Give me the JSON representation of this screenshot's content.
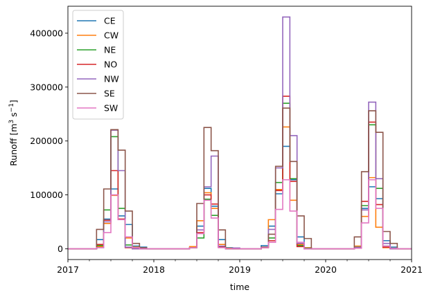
{
  "chart_data": {
    "type": "line",
    "step": "post",
    "xlabel": "time",
    "ylabel_main": "Runoff [m",
    "ylabel_sup1": "3",
    "ylabel_mid": " s",
    "ylabel_sup2": "−1",
    "ylabel_end": "]",
    "xlim": [
      0,
      48
    ],
    "ylim": [
      -20000,
      450000
    ],
    "x_ticks": [
      {
        "value": 0,
        "label": "2017"
      },
      {
        "value": 12,
        "label": "2018"
      },
      {
        "value": 24,
        "label": "2019"
      },
      {
        "value": 36,
        "label": "2020"
      },
      {
        "value": 48,
        "label": "2021"
      }
    ],
    "y_ticks": [
      {
        "value": 0,
        "label": "0"
      },
      {
        "value": 100000,
        "label": "100000"
      },
      {
        "value": 200000,
        "label": "200000"
      },
      {
        "value": 300000,
        "label": "300000"
      },
      {
        "value": 400000,
        "label": "400000"
      }
    ],
    "legend_position": "top-left",
    "series": [
      {
        "name": "CE",
        "color": "#1f77b4",
        "values": [
          0,
          0,
          0,
          0,
          17000,
          55000,
          111000,
          61000,
          45000,
          5000,
          3000,
          0,
          0,
          0,
          0,
          0,
          0,
          3000,
          42000,
          112000,
          79000,
          17000,
          2000,
          0,
          0,
          0,
          0,
          6000,
          42000,
          102000,
          190000,
          128000,
          22000,
          2000,
          0,
          0,
          0,
          0,
          0,
          0,
          3000,
          75000,
          115000,
          93000,
          15000,
          3000,
          0,
          0
        ]
      },
      {
        "name": "CW",
        "color": "#ff7f0e",
        "values": [
          0,
          0,
          0,
          0,
          4000,
          47000,
          99000,
          55000,
          20000,
          3000,
          1000,
          0,
          0,
          0,
          0,
          0,
          0,
          4000,
          52000,
          104000,
          75000,
          8000,
          1000,
          0,
          0,
          0,
          0,
          2000,
          54000,
          110000,
          226000,
          90000,
          8000,
          2000,
          0,
          0,
          0,
          0,
          0,
          0,
          5000,
          60000,
          132000,
          40000,
          2000,
          1000,
          0,
          0
        ]
      },
      {
        "name": "NE",
        "color": "#2ca02c",
        "values": [
          0,
          0,
          0,
          0,
          6000,
          72000,
          208000,
          75000,
          7000,
          1000,
          0,
          0,
          0,
          0,
          0,
          0,
          0,
          2000,
          20000,
          92000,
          62000,
          4000,
          0,
          0,
          0,
          0,
          0,
          3000,
          20000,
          123000,
          270000,
          130000,
          6000,
          1000,
          0,
          0,
          0,
          0,
          0,
          0,
          2000,
          80000,
          230000,
          112000,
          5000,
          1000,
          0,
          0
        ]
      },
      {
        "name": "NO",
        "color": "#d62728",
        "values": [
          0,
          0,
          0,
          0,
          8000,
          53000,
          145000,
          55000,
          2000,
          0,
          0,
          0,
          0,
          0,
          0,
          0,
          0,
          2000,
          30000,
          100000,
          83000,
          3000,
          0,
          0,
          0,
          0,
          0,
          2000,
          15000,
          108000,
          283000,
          125000,
          4000,
          0,
          0,
          0,
          0,
          0,
          0,
          0,
          2000,
          88000,
          235000,
          82000,
          3000,
          0,
          0,
          0
        ]
      },
      {
        "name": "NW",
        "color": "#9467bd",
        "values": [
          0,
          0,
          0,
          0,
          2000,
          50000,
          220000,
          145000,
          3000,
          0,
          0,
          0,
          0,
          0,
          0,
          0,
          0,
          2000,
          35000,
          115000,
          172000,
          5000,
          0,
          1500,
          0,
          0,
          0,
          3000,
          36000,
          150000,
          430000,
          210000,
          10000,
          0,
          0,
          0,
          0,
          0,
          0,
          0,
          2000,
          72000,
          272000,
          130000,
          10000,
          0,
          0,
          0
        ]
      },
      {
        "name": "SE",
        "color": "#8c564b",
        "values": [
          0,
          0,
          0,
          0,
          36000,
          111000,
          221000,
          183000,
          70000,
          10000,
          2000,
          0,
          0,
          0,
          0,
          0,
          0,
          2000,
          84000,
          225000,
          182000,
          35000,
          0,
          0,
          0,
          0,
          0,
          3000,
          27000,
          153000,
          261000,
          162000,
          61000,
          19000,
          0,
          0,
          0,
          0,
          0,
          0,
          22000,
          143000,
          256000,
          216000,
          32000,
          10000,
          0,
          0
        ]
      },
      {
        "name": "SW",
        "color": "#e377c2",
        "values": [
          0,
          0,
          0,
          0,
          2000,
          30000,
          100000,
          54000,
          22000,
          2000,
          0,
          0,
          0,
          0,
          0,
          0,
          0,
          2000,
          28000,
          90000,
          57000,
          2000,
          0,
          0,
          0,
          0,
          0,
          2000,
          12000,
          73000,
          128000,
          70000,
          12000,
          0,
          0,
          0,
          0,
          0,
          0,
          0,
          1000,
          48000,
          128000,
          75000,
          5000,
          1000,
          0,
          0
        ]
      }
    ]
  }
}
